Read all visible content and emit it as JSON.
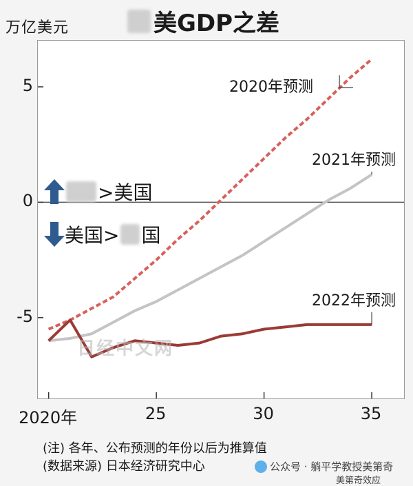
{
  "header": {
    "y_unit_label": "万亿美元",
    "title_text": "美GDP之差"
  },
  "legend_regions": {
    "upper_label_sep": ">美国",
    "lower_label": "美国>",
    "lower_tail": "国"
  },
  "watermark_text": "日经中文网",
  "notes": {
    "line1": "(注) 各年、公布预测的年份以后为推算值",
    "line2": "(数据来源) 日本经济研究中心"
  },
  "footer": {
    "account": "公众号 · 躺平学教授美第奇",
    "account2": "美第奇效应"
  },
  "colors": {
    "s2020": "#d9605a",
    "s2021": "#c4c4c4",
    "s2022": "#9b3b36",
    "zero_line": "#555555",
    "arrow": "#2f5b8f"
  },
  "chart_data": {
    "type": "line",
    "title": "美GDP之差",
    "ylabel": "万亿美元",
    "xlabel": "",
    "xlim": [
      2019.5,
      2036.5
    ],
    "ylim": [
      -8.5,
      7
    ],
    "xticks": [
      2020,
      2025,
      2030,
      2035
    ],
    "xtick_labels": [
      "2020年",
      "25",
      "30",
      "35"
    ],
    "yticks": [
      5,
      0,
      -5
    ],
    "ytick_labels": [
      "5",
      "0",
      "-5"
    ],
    "series": [
      {
        "name": "2020年预测",
        "style": "dashed",
        "x": [
          2020,
          2021,
          2022,
          2023,
          2024,
          2025,
          2026,
          2027,
          2028,
          2029,
          2030,
          2031,
          2032,
          2033,
          2034,
          2035
        ],
        "y": [
          -5.5,
          -5.1,
          -4.6,
          -4.1,
          -3.3,
          -2.5,
          -1.6,
          -0.8,
          0.1,
          1.0,
          1.9,
          2.8,
          3.6,
          4.5,
          5.4,
          6.2
        ]
      },
      {
        "name": "2021年预测",
        "style": "solid",
        "x": [
          2020,
          2021,
          2022,
          2023,
          2024,
          2025,
          2026,
          2027,
          2028,
          2029,
          2030,
          2031,
          2032,
          2033,
          2034,
          2035
        ],
        "y": [
          -6.0,
          -5.9,
          -5.7,
          -5.2,
          -4.7,
          -4.3,
          -3.8,
          -3.3,
          -2.8,
          -2.3,
          -1.7,
          -1.1,
          -0.5,
          0.1,
          0.6,
          1.2
        ]
      },
      {
        "name": "2022年预测",
        "style": "solid",
        "x": [
          2020,
          2021,
          2022,
          2023,
          2024,
          2025,
          2026,
          2027,
          2028,
          2029,
          2030,
          2031,
          2032,
          2033,
          2034,
          2035
        ],
        "y": [
          -6.0,
          -5.1,
          -6.7,
          -6.3,
          -6.0,
          -6.1,
          -6.2,
          -6.1,
          -5.8,
          -5.7,
          -5.5,
          -5.4,
          -5.3,
          -5.3,
          -5.3,
          -5.3
        ]
      }
    ],
    "annotations": [
      {
        "text": "2020年预测",
        "series": 0,
        "anchor_x": 2033.5,
        "anchor_y": 5.5
      },
      {
        "text": "2021年预测",
        "series": 1,
        "anchor_x": 2035,
        "anchor_y": 1.2
      },
      {
        "text": "2022年预测",
        "series": 2,
        "anchor_x": 2035,
        "anchor_y": -5.3
      }
    ]
  }
}
